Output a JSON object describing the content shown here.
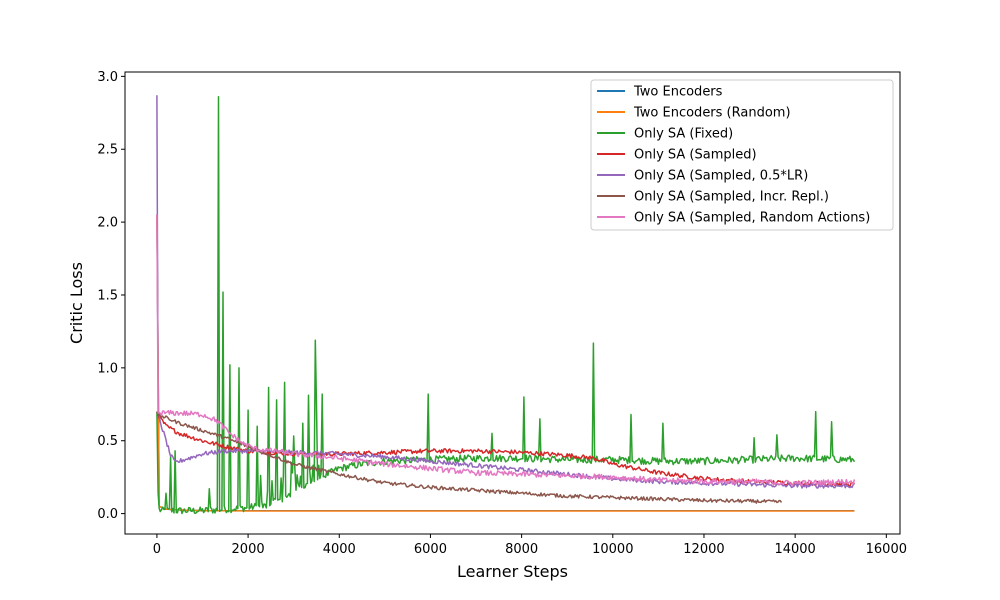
{
  "chart_data": {
    "type": "line",
    "xlabel": "Learner Steps",
    "ylabel": "Critic Loss",
    "xlim": [
      -700,
      16300
    ],
    "ylim": [
      -0.14,
      3.03
    ],
    "xticks": [
      0,
      2000,
      4000,
      6000,
      8000,
      10000,
      12000,
      14000,
      16000
    ],
    "xtick_labels": [
      "0",
      "2000",
      "4000",
      "6000",
      "8000",
      "10000",
      "12000",
      "14000",
      "16000"
    ],
    "yticks": [
      0.0,
      0.5,
      1.0,
      1.5,
      2.0,
      2.5,
      3.0
    ],
    "ytick_labels": [
      "0.0",
      "0.5",
      "1.0",
      "1.5",
      "2.0",
      "2.5",
      "3.0"
    ],
    "grid": false,
    "legend_position": "upper-right",
    "series": [
      {
        "name": "Two Encoders",
        "color": "#1f77b4",
        "x": [
          0,
          50,
          200,
          500,
          1000,
          2000,
          4000,
          8000,
          12000,
          15300
        ],
        "y": [
          2.05,
          0.05,
          0.03,
          0.025,
          0.02,
          0.02,
          0.02,
          0.02,
          0.02,
          0.02
        ],
        "noise": 0.0
      },
      {
        "name": "Two Encoders (Random)",
        "color": "#ff7f0e",
        "x": [
          0,
          50,
          200,
          500,
          1000,
          2000,
          4000,
          8000,
          12000,
          15300
        ],
        "y": [
          2.05,
          0.05,
          0.03,
          0.025,
          0.02,
          0.018,
          0.018,
          0.018,
          0.018,
          0.018
        ],
        "noise": 0.0
      },
      {
        "name": "Only SA (Fixed)",
        "color": "#2ca02c",
        "x": [
          0,
          30,
          100,
          500,
          1000,
          1500,
          2000,
          2400,
          2800,
          3200,
          3600,
          4000,
          4500,
          5000,
          6000,
          7000,
          8000,
          9000,
          10000,
          11000,
          12000,
          13000,
          14000,
          15300
        ],
        "y": [
          0.7,
          0.03,
          0.02,
          0.02,
          0.02,
          0.03,
          0.04,
          0.06,
          0.1,
          0.18,
          0.25,
          0.31,
          0.34,
          0.36,
          0.37,
          0.38,
          0.38,
          0.37,
          0.37,
          0.36,
          0.36,
          0.37,
          0.38,
          0.37
        ],
        "noise": 0.025,
        "spikes": [
          [
            200,
            0.14
          ],
          [
            300,
            0.39
          ],
          [
            400,
            0.43
          ],
          [
            1150,
            0.17
          ],
          [
            1340,
            2.86
          ],
          [
            1440,
            1.52
          ],
          [
            1600,
            1.02
          ],
          [
            1800,
            1.0
          ],
          [
            2000,
            0.71
          ],
          [
            2200,
            0.6
          ],
          [
            2450,
            0.65
          ],
          [
            2620,
            0.78
          ],
          [
            2800,
            0.9
          ],
          [
            3000,
            0.5
          ],
          [
            3200,
            0.62
          ],
          [
            3330,
            0.62
          ],
          [
            3470,
            1.19
          ],
          [
            3500,
            0.74
          ],
          [
            3620,
            0.82
          ],
          [
            5950,
            0.82
          ],
          [
            7350,
            0.55
          ],
          [
            8050,
            0.8
          ],
          [
            8400,
            0.65
          ],
          [
            9570,
            1.17
          ],
          [
            10400,
            0.68
          ],
          [
            11100,
            0.62
          ],
          [
            13100,
            0.52
          ],
          [
            13600,
            0.54
          ],
          [
            14450,
            0.7
          ],
          [
            14800,
            0.63
          ]
        ]
      },
      {
        "name": "Only SA (Sampled)",
        "color": "#d62728",
        "x": [
          0,
          20,
          200,
          500,
          1000,
          1500,
          2000,
          3000,
          4000,
          5000,
          6000,
          7000,
          8000,
          9000,
          9600,
          10000,
          11000,
          12000,
          13000,
          14000,
          15300
        ],
        "y": [
          0.7,
          0.68,
          0.6,
          0.55,
          0.5,
          0.46,
          0.43,
          0.41,
          0.41,
          0.42,
          0.43,
          0.43,
          0.42,
          0.4,
          0.38,
          0.34,
          0.28,
          0.24,
          0.22,
          0.21,
          0.2
        ],
        "noise": 0.015
      },
      {
        "name": "Only SA (Sampled, 0.5*LR)",
        "color": "#9467bd",
        "x": [
          0,
          20,
          100,
          200,
          300,
          400,
          500,
          700,
          1000,
          1500,
          2000,
          3000,
          4000,
          5000,
          6000,
          7000,
          8000,
          9000,
          10000,
          11000,
          12000,
          13000,
          14000,
          15300
        ],
        "y": [
          2.87,
          0.7,
          0.6,
          0.5,
          0.4,
          0.35,
          0.36,
          0.38,
          0.41,
          0.43,
          0.43,
          0.42,
          0.41,
          0.39,
          0.36,
          0.33,
          0.3,
          0.27,
          0.24,
          0.22,
          0.21,
          0.2,
          0.19,
          0.19
        ],
        "noise": 0.015
      },
      {
        "name": "Only SA (Sampled, Incr. Repl.)",
        "color": "#8c564b",
        "x": [
          0,
          20,
          500,
          1000,
          1500,
          2000,
          2500,
          3000,
          4000,
          5000,
          6000,
          7000,
          8000,
          9000,
          10000,
          11000,
          12000,
          13000,
          13700
        ],
        "y": [
          0.7,
          0.68,
          0.62,
          0.57,
          0.52,
          0.46,
          0.4,
          0.34,
          0.27,
          0.21,
          0.18,
          0.16,
          0.14,
          0.12,
          0.11,
          0.1,
          0.09,
          0.085,
          0.08
        ],
        "noise": 0.012
      },
      {
        "name": "Only SA (Sampled, Random Actions)",
        "color": "#e377c2",
        "x": [
          0,
          20,
          500,
          1000,
          1300,
          1600,
          1900,
          2200,
          2600,
          3000,
          4000,
          5000,
          6000,
          7000,
          8000,
          9000,
          10000,
          11000,
          12000,
          13000,
          14000,
          15300
        ],
        "y": [
          2.05,
          0.69,
          0.69,
          0.68,
          0.64,
          0.55,
          0.48,
          0.44,
          0.43,
          0.41,
          0.38,
          0.34,
          0.31,
          0.28,
          0.27,
          0.26,
          0.25,
          0.23,
          0.22,
          0.22,
          0.21,
          0.22
        ],
        "noise": 0.018
      }
    ]
  }
}
